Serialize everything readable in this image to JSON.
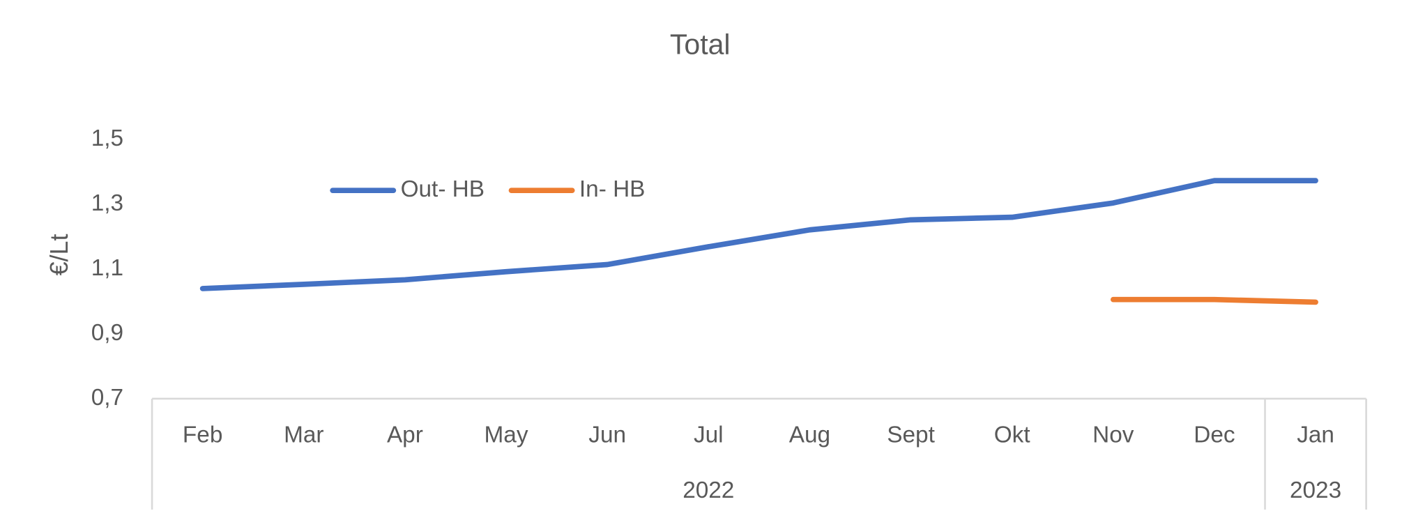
{
  "chart_data": {
    "type": "line",
    "title": "Total",
    "y_label": "€/Lt",
    "categories": [
      "Feb",
      "Mar",
      "Apr",
      "May",
      "Jun",
      "Jul",
      "Aug",
      "Sept",
      "Okt",
      "Nov",
      "Dec",
      "Jan"
    ],
    "category_groups": [
      "2022",
      "2022",
      "2022",
      "2022",
      "2022",
      "2022",
      "2022",
      "2022",
      "2022",
      "2022",
      "2022",
      "2023"
    ],
    "series": [
      {
        "name": "Out- HB",
        "color": "#4472c4",
        "values": [
          1.04,
          1.053,
          1.067,
          1.092,
          1.114,
          1.169,
          1.221,
          1.252,
          1.26,
          1.304,
          1.373,
          1.373
        ]
      },
      {
        "name": "In- HB",
        "color": "#ed7d31",
        "values": [
          null,
          null,
          null,
          null,
          null,
          null,
          null,
          null,
          null,
          1.006,
          1.006,
          0.998
        ]
      }
    ],
    "ylim": [
      0.7,
      1.5
    ],
    "yticks": [
      {
        "value": 0.7,
        "label": "0,7"
      },
      {
        "value": 0.9,
        "label": "0,9"
      },
      {
        "value": 1.1,
        "label": "1,1"
      },
      {
        "value": 1.3,
        "label": "1,3"
      },
      {
        "value": 1.5,
        "label": "1,5"
      }
    ],
    "grid": false,
    "legend": "top"
  }
}
